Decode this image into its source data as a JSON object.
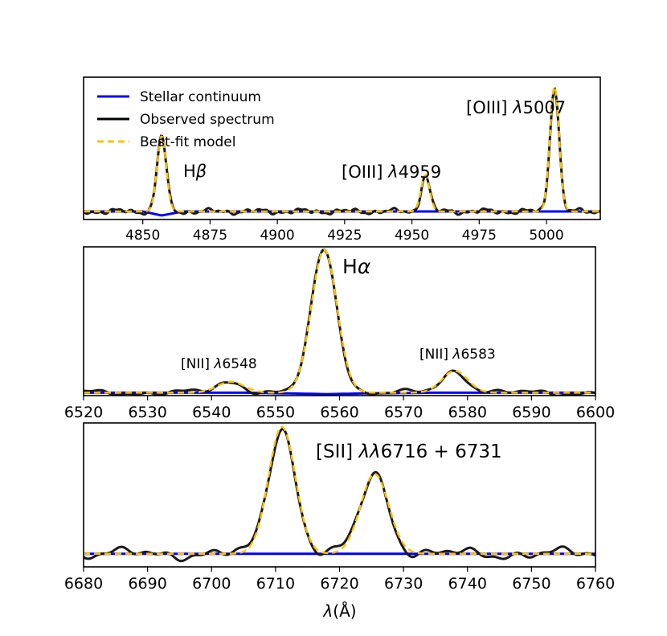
{
  "chart_data": [
    {
      "type": "line",
      "panel": "hbeta-oiii",
      "xlim": [
        4828,
        5020
      ],
      "ylim": [
        -0.06,
        1.0
      ],
      "xticks": [
        4850,
        4875,
        4900,
        4925,
        4950,
        4975,
        5000
      ],
      "tick_labels": [
        "4850",
        "4875",
        "4900",
        "4925",
        "4950",
        "4975",
        "5000"
      ],
      "legend": {
        "placement": "top-left",
        "entries": [
          {
            "label": "Stellar continuum",
            "color": "#0000ff",
            "style": "solid"
          },
          {
            "label": "Observed spectrum",
            "color": "#000000",
            "style": "solid"
          },
          {
            "label": "Best-fit model",
            "color": "#ffc000",
            "style": "dashed"
          }
        ]
      },
      "annotations": [
        {
          "main": "H",
          "italic": "β",
          "x": 4864,
          "y": 0.42
        },
        {
          "main": "[OIII] ",
          "italic": "λ",
          "rest": "4959",
          "x": 4921,
          "y": 0.42
        },
        {
          "main": "[OIII] ",
          "italic": "λ",
          "rest": "5007",
          "x": 4970,
          "y": 1.08
        }
      ],
      "continuum": {
        "x": [
          4828,
          4850,
          4857,
          4865,
          4900,
          4950,
          5000,
          5020
        ],
        "y": [
          0.0,
          0.0,
          -0.03,
          0.0,
          0.0,
          0.0,
          0.0,
          0.0
        ]
      },
      "lines": [
        {
          "name": "Hbeta",
          "center": 4857,
          "amp": 0.56,
          "sigma": 1.7
        },
        {
          "name": "OIII4959",
          "center": 4955,
          "amp": 0.27,
          "sigma": 1.6
        },
        {
          "name": "OIII5007",
          "center": 5003,
          "amp": 0.93,
          "sigma": 1.7
        }
      ]
    },
    {
      "type": "line",
      "panel": "halpha-nii",
      "xlim": [
        6520,
        6600
      ],
      "ylim": [
        -0.02,
        1.0
      ],
      "xticks": [
        6520,
        6530,
        6540,
        6550,
        6560,
        6570,
        6580,
        6590,
        6600
      ],
      "tick_labels": [
        "6520",
        "6530",
        "6540",
        "6550",
        "6560",
        "6570",
        "6580",
        "6590",
        "6600"
      ],
      "annotations": [
        {
          "main": "H",
          "italic": "α",
          "x": 6560.5,
          "y": 0.94
        },
        {
          "main": "[NII] ",
          "italic": "λ",
          "rest": "6548",
          "x": 6534.2,
          "y": 0.17
        },
        {
          "main": "[NII] ",
          "italic": "λ",
          "rest": "6583",
          "x": 6571.5,
          "y": 0.22
        }
      ],
      "continuum": {
        "x": [
          6520,
          6545,
          6552,
          6558,
          6564,
          6575,
          6600
        ],
        "y": [
          0.0,
          0.0,
          -0.005,
          -0.01,
          -0.005,
          0.0,
          0.0
        ]
      },
      "lines": [
        {
          "name": "NII6548",
          "center": 6543,
          "amp": 0.075,
          "sigma": 2.1
        },
        {
          "name": "Halpha",
          "center": 6557.6,
          "amp": 0.98,
          "sigma": 2.0
        },
        {
          "name": "NII6583",
          "center": 6578,
          "amp": 0.15,
          "sigma": 2.0
        }
      ]
    },
    {
      "type": "line",
      "panel": "sii-doublet",
      "xlim": [
        6680,
        6760
      ],
      "ylim": [
        -0.1,
        1.0
      ],
      "xticks": [
        6680,
        6690,
        6700,
        6710,
        6720,
        6730,
        6740,
        6750,
        6760
      ],
      "tick_labels": [
        "6680",
        "6690",
        "6700",
        "6710",
        "6720",
        "6730",
        "6740",
        "6750",
        "6760"
      ],
      "xlabel_italic": "λ",
      "xlabel_rest": "(Å)",
      "annotations": [
        {
          "main": "[SII] ",
          "italic": "λλ",
          "rest": "6716 + 6731",
          "x": 6718.3,
          "y": 0.72
        }
      ],
      "continuum": {
        "x": [
          6680,
          6700,
          6720,
          6740,
          6760
        ],
        "y": [
          0.0,
          0.0,
          0.0,
          0.0,
          0.0
        ]
      },
      "lines": [
        {
          "name": "SII6716",
          "center": 6711,
          "amp": 0.97,
          "sigma": 2.1
        },
        {
          "name": "SII6731",
          "center": 6725.5,
          "amp": 0.61,
          "sigma": 2.2
        }
      ]
    }
  ]
}
